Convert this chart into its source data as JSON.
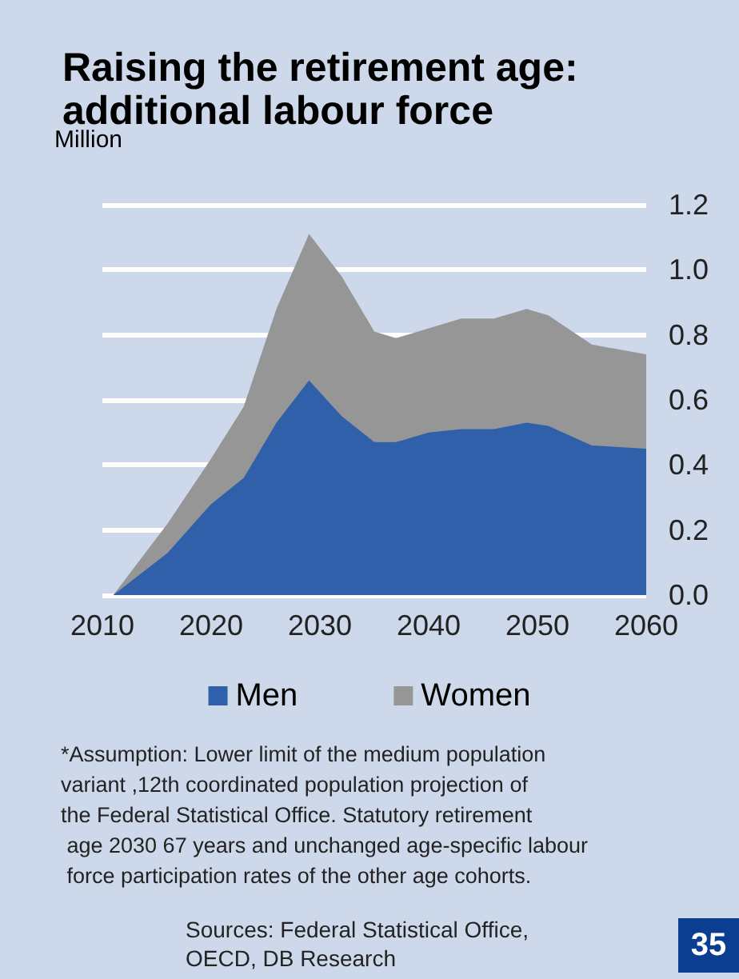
{
  "chart_data": {
    "type": "area",
    "title": "Raising the retirement age: additional labour force",
    "ylabel": "Million",
    "x": [
      2011,
      2016,
      2020,
      2023,
      2026,
      2029,
      2032,
      2035,
      2037,
      2040,
      2043,
      2046,
      2049,
      2051,
      2055,
      2060
    ],
    "series": [
      {
        "name": "Men",
        "color": "#3060aa",
        "values": [
          0,
          0.13,
          0.28,
          0.36,
          0.53,
          0.66,
          0.55,
          0.47,
          0.47,
          0.5,
          0.51,
          0.51,
          0.53,
          0.52,
          0.46,
          0.45
        ]
      },
      {
        "name": "Women",
        "color": "#969696",
        "values": [
          0,
          0.09,
          0.14,
          0.22,
          0.35,
          0.45,
          0.43,
          0.34,
          0.32,
          0.32,
          0.34,
          0.34,
          0.35,
          0.34,
          0.31,
          0.29
        ]
      }
    ],
    "stacked": true,
    "xlim": [
      2010,
      2060
    ],
    "xticks": [
      2010,
      2020,
      2030,
      2040,
      2050,
      2060
    ],
    "ylim": [
      0,
      1.2
    ],
    "yticks": [
      {
        "value": 0,
        "label": "0.0"
      },
      {
        "value": 0.2,
        "label": "0.2"
      },
      {
        "value": 0.4,
        "label": "0.4"
      },
      {
        "value": 0.6,
        "label": "0.6"
      },
      {
        "value": 0.8,
        "label": "0.8"
      },
      {
        "value": 1.0,
        "label": "1.0"
      },
      {
        "value": 1.2,
        "label": "1.2"
      }
    ],
    "grid": "y",
    "legend": "bottom",
    "annotations": [
      "*Assumption: Lower limit of the medium population variant ,12th coordinated population projection of the Federal Statistical Office. Statutory retirement age 2030 67 years and unchanged age-specific labour force participation rates of the other age cohorts.",
      "Sources: Federal Statistical Office, OECD, DB Research",
      "35"
    ]
  }
}
